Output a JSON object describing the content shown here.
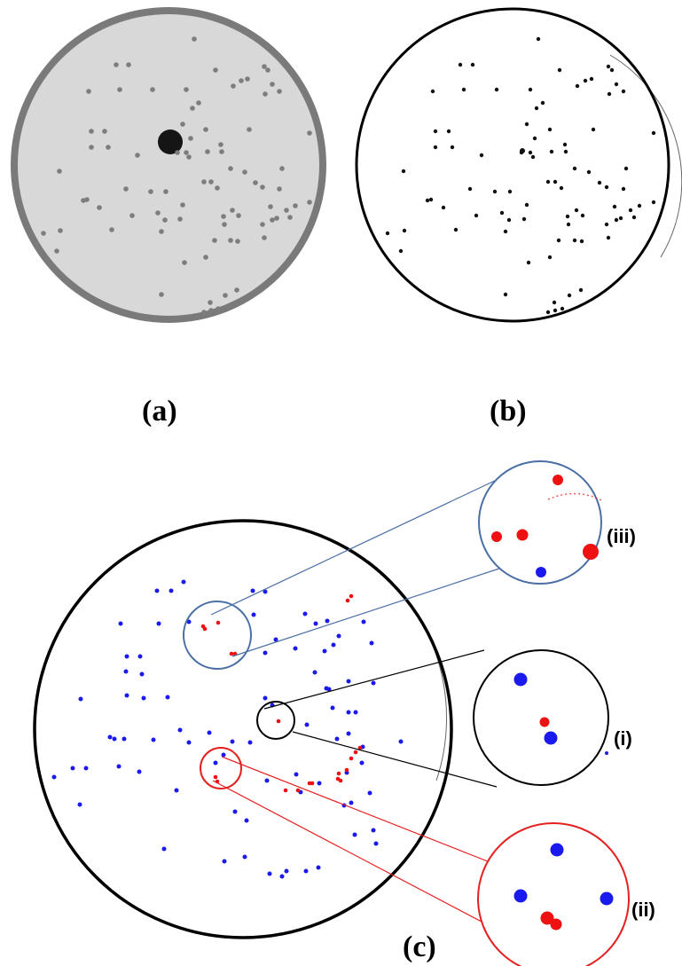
{
  "figure": {
    "panel_labels": {
      "a": "(a)",
      "b": "(b)",
      "c": "(c)"
    },
    "zoom_labels": {
      "i": "(i)",
      "ii": "(ii)",
      "iii": "(iii)"
    },
    "colors": {
      "plate_rim": "#7a7a7a",
      "plate_fill": "#d8d8d8",
      "colony_gray": "#7d7d7d",
      "colony_black": "#111111",
      "colony_blue": "#1a1aee",
      "colony_red": "#ee1111",
      "zoom_iii_border": "#4a6fa5",
      "zoom_i_border": "#000000",
      "zoom_ii_border": "#e62020"
    }
  }
}
